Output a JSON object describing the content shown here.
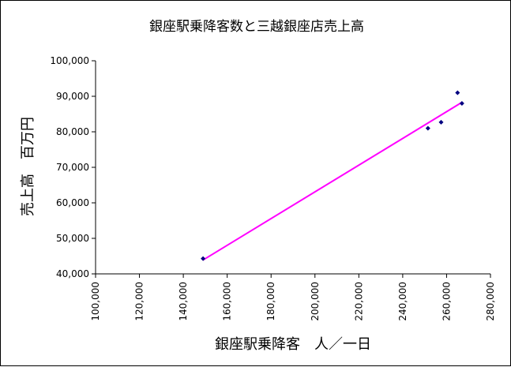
{
  "chart_data": {
    "type": "scatter",
    "title": "銀座駅乗降客数と三越銀座店売上高",
    "xlabel": "銀座駅乗降客　人／一日",
    "ylabel": "売上高　百万円",
    "xlim": [
      100000,
      280000
    ],
    "ylim": [
      40000,
      100000
    ],
    "x_ticks": [
      100000,
      120000,
      140000,
      160000,
      180000,
      200000,
      220000,
      240000,
      260000,
      280000
    ],
    "x_tick_labels": [
      "100,000",
      "120,000",
      "140,000",
      "160,000",
      "180,000",
      "200,000",
      "220,000",
      "240,000",
      "260,000",
      "280,000"
    ],
    "y_ticks": [
      40000,
      50000,
      60000,
      70000,
      80000,
      90000,
      100000
    ],
    "y_tick_labels": [
      "40,000",
      "50,000",
      "60,000",
      "70,000",
      "80,000",
      "90,000",
      "100,000"
    ],
    "points": [
      {
        "x": 149000,
        "y": 44300
      },
      {
        "x": 251500,
        "y": 81000
      },
      {
        "x": 257500,
        "y": 82700
      },
      {
        "x": 265000,
        "y": 91000
      },
      {
        "x": 267000,
        "y": 88000
      }
    ],
    "trendline": {
      "x": [
        149000,
        267000
      ],
      "y": [
        43900,
        88300
      ]
    },
    "grid": false,
    "legend": "none",
    "colors": {
      "marker": "#000080",
      "trendline": "#ff00ff",
      "axis": "#000000",
      "background": "#ffffff"
    }
  }
}
